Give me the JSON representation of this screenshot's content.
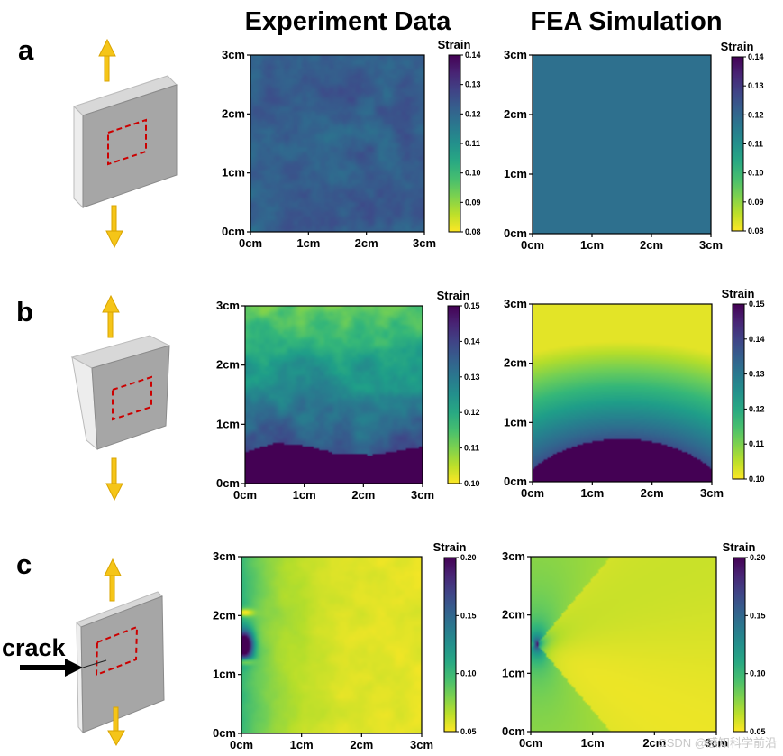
{
  "column_titles": [
    "Experiment Data",
    "FEA Simulation"
  ],
  "rows": [
    "a",
    "b",
    "c"
  ],
  "crack_label": "crack",
  "watermark": "CSDN @感知科学前沿",
  "colors": {
    "arrow": "#f5c518",
    "arrow_edge": "#d9a400",
    "specimen_front": "#a6a6a6",
    "specimen_side": "#ededed",
    "roi_dash": "#cc0000"
  },
  "colormap": "viridis (reversed: yellow = low strain, dark purple = high strain)",
  "chart_data": [
    {
      "id": "a-experiment",
      "type": "heatmap",
      "row": "a",
      "panel": "Experiment Data",
      "xlabel_ticks": [
        "0cm",
        "1cm",
        "2cm",
        "3cm"
      ],
      "ylabel_ticks": [
        "0cm",
        "1cm",
        "2cm",
        "3cm"
      ],
      "x_range_cm": [
        0,
        3
      ],
      "y_range_cm": [
        0,
        3
      ],
      "colorbar": {
        "title": "Strain",
        "min": 0.08,
        "max": 0.14,
        "ticks": [
          "0.14",
          "0.13",
          "0.12",
          "0.11",
          "0.10",
          "0.09",
          "0.08"
        ]
      },
      "field": "nearly uniform, mottled",
      "strain_mean": 0.122,
      "strain_noise": 0.006
    },
    {
      "id": "a-fea",
      "type": "heatmap",
      "row": "a",
      "panel": "FEA Simulation",
      "xlabel_ticks": [
        "0cm",
        "1cm",
        "2cm",
        "3cm"
      ],
      "ylabel_ticks": [
        "0cm",
        "1cm",
        "2cm",
        "3cm"
      ],
      "x_range_cm": [
        0,
        3
      ],
      "y_range_cm": [
        0,
        3
      ],
      "colorbar": {
        "title": "Strain",
        "min": 0.08,
        "max": 0.14,
        "ticks": [
          "0.14",
          "0.13",
          "0.12",
          "0.11",
          "0.10",
          "0.09",
          "0.08"
        ]
      },
      "field": "uniform",
      "strain_mean": 0.118,
      "strain_noise": 0
    },
    {
      "id": "b-experiment",
      "type": "heatmap",
      "row": "b",
      "panel": "Experiment Data",
      "xlabel_ticks": [
        "0cm",
        "1cm",
        "2cm",
        "3cm"
      ],
      "ylabel_ticks": [
        "0cm",
        "1cm",
        "2cm",
        "3cm"
      ],
      "x_range_cm": [
        0,
        3
      ],
      "y_range_cm": [
        0,
        3
      ],
      "colorbar": {
        "title": "Strain",
        "min": 0.1,
        "max": 0.15,
        "ticks": [
          "0.15",
          "0.14",
          "0.13",
          "0.12",
          "0.11",
          "0.10"
        ]
      },
      "field": "vertical gradient, high strain near bottom",
      "strain_top": 0.112,
      "strain_bottom": 0.15,
      "strain_noise": 0.006
    },
    {
      "id": "b-fea",
      "type": "heatmap",
      "row": "b",
      "panel": "FEA Simulation",
      "xlabel_ticks": [
        "0cm",
        "1cm",
        "2cm",
        "3cm"
      ],
      "ylabel_ticks": [
        "0cm",
        "1cm",
        "2cm",
        "3cm"
      ],
      "x_range_cm": [
        0,
        3
      ],
      "y_range_cm": [
        0,
        3
      ],
      "colorbar": {
        "title": "Strain",
        "min": 0.1,
        "max": 0.15,
        "ticks": [
          "0.15",
          "0.14",
          "0.13",
          "0.12",
          "0.11",
          "0.10"
        ]
      },
      "field": "smooth vertical gradient, high strain near bottom",
      "strain_top": 0.102,
      "strain_bottom": 0.15,
      "strain_noise": 0
    },
    {
      "id": "c-experiment",
      "type": "heatmap",
      "row": "c",
      "panel": "Experiment Data",
      "xlabel_ticks": [
        "0cm",
        "1cm",
        "2cm",
        "3cm"
      ],
      "ylabel_ticks": [
        "0cm",
        "1cm",
        "2cm",
        "3cm"
      ],
      "x_range_cm": [
        0,
        3
      ],
      "y_range_cm": [
        0,
        3
      ],
      "colorbar": {
        "title": "Strain",
        "min": 0.05,
        "max": 0.2,
        "ticks": [
          "0.20",
          "0.15",
          "0.10",
          "0.05"
        ]
      },
      "field": "crack at left edge, concentration near (0, 1.5cm)",
      "crack_tip_cm": [
        0.05,
        1.5
      ],
      "strain_noise": 0.01
    },
    {
      "id": "c-fea",
      "type": "heatmap",
      "row": "c",
      "panel": "FEA Simulation",
      "xlabel_ticks": [
        "0cm",
        "1cm",
        "2cm",
        "3cm"
      ],
      "ylabel_ticks": [
        "0cm",
        "1cm",
        "2cm",
        "3cm"
      ],
      "x_range_cm": [
        0,
        3
      ],
      "y_range_cm": [
        0,
        3
      ],
      "colorbar": {
        "title": "Strain",
        "min": 0.05,
        "max": 0.2,
        "ticks": [
          "0.20",
          "0.15",
          "0.10",
          "0.05"
        ]
      },
      "field": "crack-tip lobes around (0.1cm, 1.5cm)",
      "crack_tip_cm": [
        0.1,
        1.5
      ],
      "strain_noise": 0
    }
  ]
}
